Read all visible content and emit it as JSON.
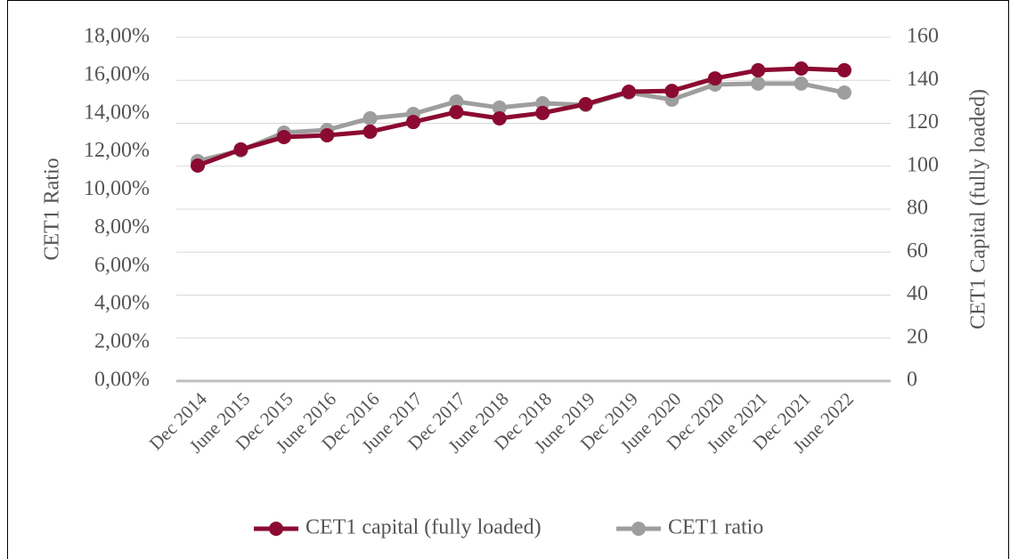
{
  "chart_data": {
    "type": "line",
    "categories": [
      "Dec 2014",
      "June 2015",
      "Dec 2015",
      "June 2016",
      "Dec 2016",
      "June 2017",
      "Dec 2017",
      "June 2018",
      "Dec 2018",
      "June 2019",
      "Dec 2019",
      "June 2020",
      "Dec 2020",
      "June 2021",
      "Dec 2021",
      "June 2022"
    ],
    "series": [
      {
        "name": "CET1 capital (fully loaded)",
        "color": "#8b0a32",
        "axis": "y2",
        "values": [
          100.3,
          107.8,
          113.6,
          114.4,
          116.1,
          120.6,
          125.2,
          122.3,
          124.8,
          128.9,
          134.7,
          135.1,
          140.9,
          144.7,
          145.5,
          144.7
        ]
      },
      {
        "name": "CET1 ratio",
        "color": "#9e9e9e",
        "values": [
          11.52,
          12.08,
          13.01,
          13.15,
          13.76,
          13.99,
          14.64,
          14.32,
          14.55,
          14.46,
          15.11,
          14.74,
          15.53,
          15.58,
          15.58,
          15.11
        ]
      }
    ],
    "ylabel": "CET1 Ratio",
    "y2label": "CET1 Capital (fully loaded)",
    "ylim": [
      0,
      18
    ],
    "yticks": [
      {
        "value": 0,
        "label": "0,00%"
      },
      {
        "value": 2,
        "label": "2,00%"
      },
      {
        "value": 4,
        "label": "4,00%"
      },
      {
        "value": 6,
        "label": "6,00%"
      },
      {
        "value": 8,
        "label": "8,00%"
      },
      {
        "value": 10,
        "label": "10,00%"
      },
      {
        "value": 12,
        "label": "12,00%"
      },
      {
        "value": 14,
        "label": "14,00%"
      },
      {
        "value": 16,
        "label": "16,00%"
      },
      {
        "value": 18,
        "label": "18,00%"
      }
    ],
    "y2lim": [
      0,
      160
    ],
    "y2ticks": [
      0,
      20,
      40,
      60,
      80,
      100,
      120,
      140,
      160
    ],
    "grid": true,
    "legend": "bottom"
  }
}
